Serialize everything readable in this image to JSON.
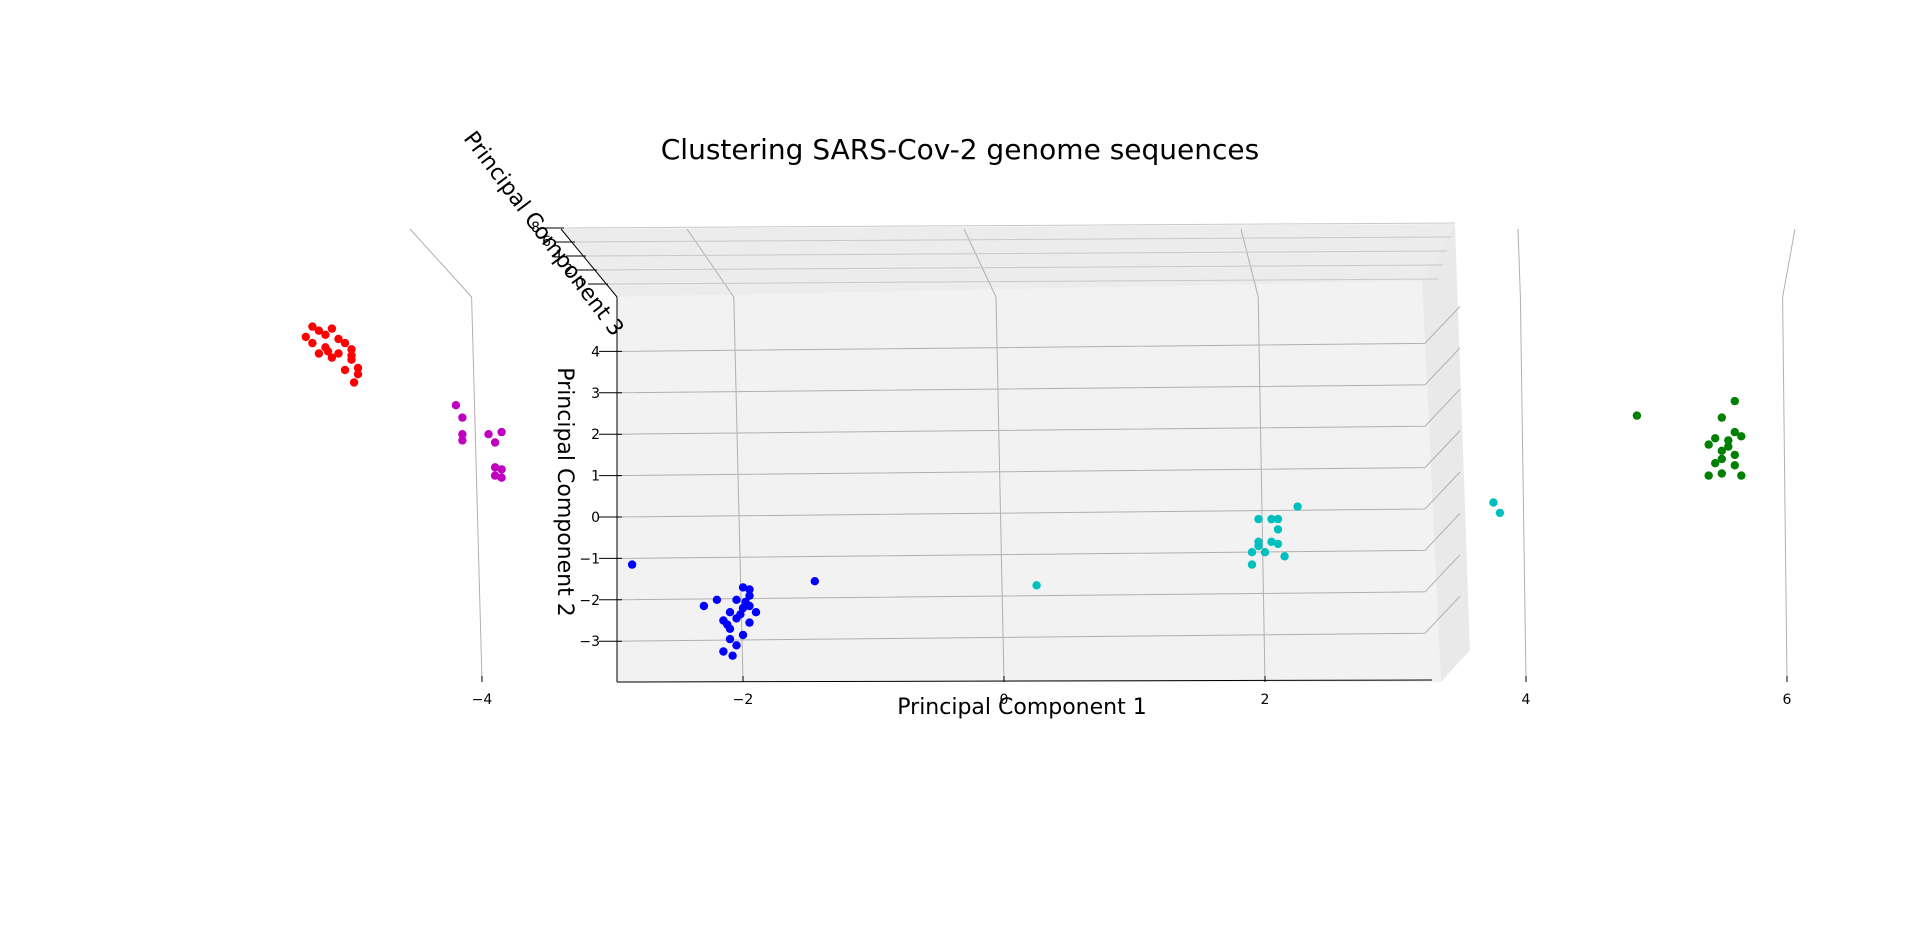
{
  "chart_data": {
    "type": "scatter",
    "projection": "3d",
    "title": "Clustering SARS-Cov-2 genome sequences",
    "xlabel": "Principal Component 1",
    "ylabel": "Principal Component 2",
    "zlabel": "Principal Component 3",
    "x_ticks": [
      "−4",
      "−2",
      "0",
      "2",
      "4",
      "6"
    ],
    "y_ticks": [
      "−3",
      "−2",
      "−1",
      "0",
      "1",
      "2",
      "3",
      "4"
    ],
    "z_ticks": [
      "0",
      "2",
      "4",
      "6",
      "8"
    ],
    "xlim": [
      -6,
      6.5
    ],
    "ylim": [
      -3.6,
      4.8
    ],
    "grid": true,
    "legend": "none",
    "series": [
      {
        "color": "#ff0000",
        "points": [
          [
            -5.3,
            4.6
          ],
          [
            -5.25,
            4.5
          ],
          [
            -5.15,
            4.55
          ],
          [
            -5.2,
            4.4
          ],
          [
            -5.1,
            4.3
          ],
          [
            -5.3,
            4.2
          ],
          [
            -5.2,
            4.1
          ],
          [
            -5.05,
            4.2
          ],
          [
            -5.1,
            3.95
          ],
          [
            -5.0,
            4.05
          ],
          [
            -5.25,
            3.95
          ],
          [
            -5.15,
            3.85
          ],
          [
            -5.0,
            3.8
          ],
          [
            -4.95,
            3.6
          ],
          [
            -5.05,
            3.55
          ],
          [
            -4.95,
            3.45
          ],
          [
            -4.98,
            3.25
          ],
          [
            -5.35,
            4.35
          ],
          [
            -5.0,
            3.9
          ],
          [
            -5.18,
            4.0
          ]
        ]
      },
      {
        "color": "#bf00bf",
        "points": [
          [
            -4.2,
            2.7
          ],
          [
            -4.15,
            2.4
          ],
          [
            -4.15,
            2.0
          ],
          [
            -4.15,
            1.85
          ],
          [
            -3.95,
            2.0
          ],
          [
            -3.85,
            2.05
          ],
          [
            -3.9,
            1.8
          ],
          [
            -3.9,
            1.2
          ],
          [
            -3.85,
            1.15
          ],
          [
            -3.9,
            1.0
          ],
          [
            -3.85,
            0.95
          ]
        ]
      },
      {
        "color": "#0000ff",
        "points": [
          [
            -2.85,
            -1.15
          ],
          [
            -1.45,
            -1.55
          ],
          [
            -2.0,
            -1.7
          ],
          [
            -1.95,
            -1.75
          ],
          [
            -1.95,
            -1.9
          ],
          [
            -2.05,
            -2.0
          ],
          [
            -2.2,
            -2.0
          ],
          [
            -2.3,
            -2.15
          ],
          [
            -1.95,
            -2.15
          ],
          [
            -2.0,
            -2.2
          ],
          [
            -2.1,
            -2.3
          ],
          [
            -1.9,
            -2.3
          ],
          [
            -2.05,
            -2.45
          ],
          [
            -2.15,
            -2.5
          ],
          [
            -1.95,
            -2.55
          ],
          [
            -2.1,
            -2.7
          ],
          [
            -2.0,
            -2.85
          ],
          [
            -2.1,
            -2.95
          ],
          [
            -2.05,
            -3.1
          ],
          [
            -2.15,
            -3.25
          ],
          [
            -2.08,
            -3.35
          ],
          [
            -1.98,
            -2.05
          ],
          [
            -2.12,
            -2.6
          ],
          [
            -2.02,
            -2.35
          ]
        ]
      },
      {
        "color": "#00bfbf",
        "points": [
          [
            0.25,
            -1.65
          ],
          [
            2.25,
            0.25
          ],
          [
            2.05,
            -0.05
          ],
          [
            1.95,
            -0.05
          ],
          [
            2.1,
            -0.05
          ],
          [
            2.1,
            -0.3
          ],
          [
            2.05,
            -0.6
          ],
          [
            1.95,
            -0.6
          ],
          [
            2.1,
            -0.65
          ],
          [
            1.9,
            -0.85
          ],
          [
            2.0,
            -0.85
          ],
          [
            2.15,
            -0.95
          ],
          [
            1.9,
            -1.15
          ],
          [
            3.75,
            0.35
          ],
          [
            3.8,
            0.1
          ],
          [
            1.95,
            -0.7
          ]
        ]
      },
      {
        "color": "#007f00",
        "points": [
          [
            5.6,
            2.8
          ],
          [
            4.85,
            2.45
          ],
          [
            5.5,
            2.4
          ],
          [
            5.6,
            2.05
          ],
          [
            5.65,
            1.95
          ],
          [
            5.45,
            1.9
          ],
          [
            5.4,
            1.75
          ],
          [
            5.55,
            1.7
          ],
          [
            5.6,
            1.5
          ],
          [
            5.5,
            1.4
          ],
          [
            5.45,
            1.3
          ],
          [
            5.6,
            1.25
          ],
          [
            5.5,
            1.05
          ],
          [
            5.65,
            1.0
          ],
          [
            5.4,
            1.0
          ],
          [
            5.55,
            1.85
          ],
          [
            5.5,
            1.6
          ]
        ]
      }
    ]
  }
}
